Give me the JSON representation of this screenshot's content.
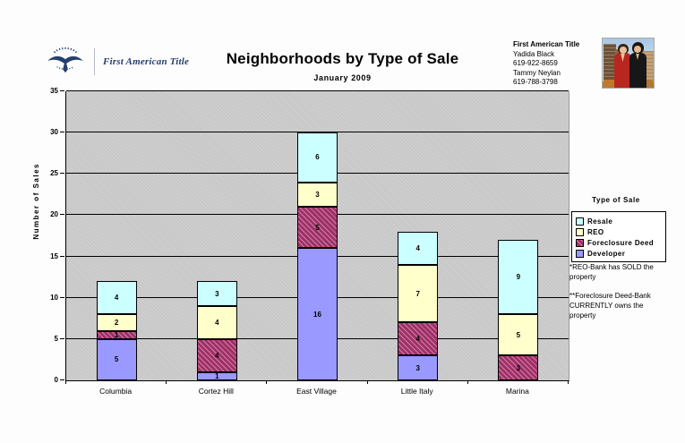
{
  "logo": {
    "company": "First American Title",
    "brand_color": "#24406e"
  },
  "header": {
    "title": "Neighborhoods by Type of Sale",
    "subtitle": "January 2009"
  },
  "contact": {
    "company": "First American Title",
    "lines": [
      "Yadida Black",
      "619-922-8659",
      "Tammy Neylan",
      "619-788-3798"
    ]
  },
  "legend": {
    "title": "Type of Sale",
    "items": [
      "Resale",
      "REO",
      "Foreclosure Deed",
      "Developer"
    ]
  },
  "notes": [
    "*REO-Bank has SOLD the property",
    "**Foreclosure Deed-Bank CURRENTLY owns the property"
  ],
  "chart_data": {
    "type": "bar",
    "stacked": true,
    "title": "Neighborhoods by Type of Sale",
    "subtitle": "January 2009",
    "categories": [
      "Columbia",
      "Cortez Hill",
      "East Village",
      "Little Italy",
      "Marina"
    ],
    "series": [
      {
        "name": "Developer",
        "color": "#9999FF",
        "hatch": false,
        "values": [
          5,
          1,
          16,
          3,
          0
        ]
      },
      {
        "name": "Foreclosure Deed",
        "color": "#993366",
        "hatch": true,
        "values": [
          1,
          4,
          5,
          4,
          3
        ]
      },
      {
        "name": "REO",
        "color": "#FFFFCC",
        "hatch": false,
        "values": [
          2,
          4,
          3,
          7,
          5
        ]
      },
      {
        "name": "Resale",
        "color": "#CCFFFF",
        "hatch": false,
        "values": [
          4,
          3,
          6,
          4,
          9
        ]
      }
    ],
    "totals": [
      12,
      12,
      30,
      18,
      17
    ],
    "xlabel": "",
    "ylabel": "Number of Sales",
    "ylim": [
      0,
      35
    ],
    "ytick_step": 5,
    "grid": true,
    "plot_bg": "#c8c8c8",
    "legend_position": "right",
    "legend_title": "Type of Sale"
  }
}
